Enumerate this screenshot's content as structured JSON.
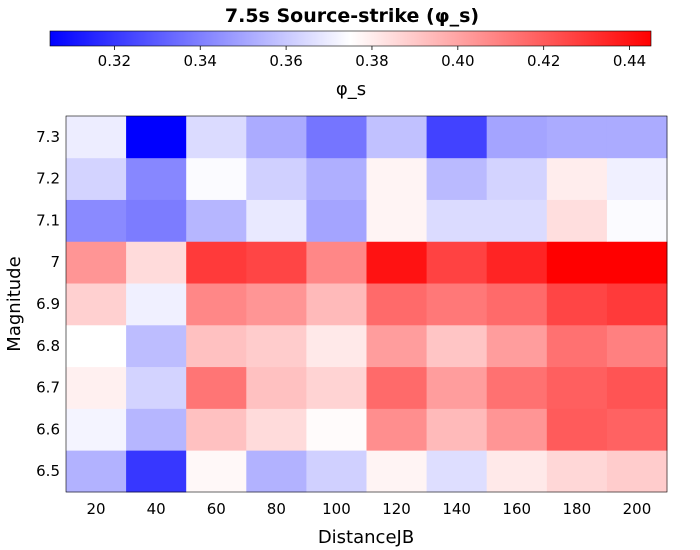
{
  "chart_data": {
    "type": "heatmap",
    "title": "7.5s Source-strike (φ_s)",
    "xlabel": "DistanceJB",
    "ylabel": "Magnitude",
    "x_categories": [
      "20",
      "40",
      "60",
      "80",
      "100",
      "120",
      "140",
      "160",
      "180",
      "200"
    ],
    "y_categories": [
      "6.5",
      "6.6",
      "6.7",
      "6.8",
      "6.9",
      "7",
      "7.1",
      "7.2",
      "7.3"
    ],
    "values": [
      [
        0.354,
        0.32,
        0.377,
        0.354,
        0.362,
        0.378,
        0.366,
        0.381,
        0.386,
        0.389
      ],
      [
        0.372,
        0.355,
        0.392,
        0.385,
        0.376,
        0.406,
        0.394,
        0.404,
        0.42,
        0.418
      ],
      [
        0.379,
        0.363,
        0.413,
        0.392,
        0.387,
        0.416,
        0.402,
        0.414,
        0.419,
        0.422
      ],
      [
        0.375,
        0.357,
        0.392,
        0.389,
        0.381,
        0.402,
        0.391,
        0.402,
        0.414,
        0.41
      ],
      [
        0.388,
        0.371,
        0.408,
        0.404,
        0.394,
        0.416,
        0.412,
        0.416,
        0.426,
        0.429
      ],
      [
        0.404,
        0.385,
        0.429,
        0.426,
        0.408,
        0.44,
        0.427,
        0.435,
        0.445,
        0.445
      ],
      [
        0.343,
        0.339,
        0.355,
        0.369,
        0.35,
        0.378,
        0.365,
        0.365,
        0.384,
        0.374
      ],
      [
        0.363,
        0.342,
        0.374,
        0.362,
        0.353,
        0.378,
        0.356,
        0.363,
        0.38,
        0.371
      ],
      [
        0.37,
        0.305,
        0.365,
        0.352,
        0.337,
        0.358,
        0.323,
        0.35,
        0.352,
        0.352
      ]
    ],
    "colorbar": {
      "label": "φ_s",
      "colormap": "bwr",
      "range": [
        0.305,
        0.445
      ],
      "ticks": [
        0.32,
        0.34,
        0.36,
        0.38,
        0.4,
        0.42,
        0.44
      ],
      "tick_labels": [
        "0.32",
        "0.34",
        "0.36",
        "0.38",
        "0.40",
        "0.42",
        "0.44"
      ],
      "placement": "top"
    },
    "grid": false,
    "colors": {
      "low": "#0000ff",
      "mid": "#ffffff",
      "high": "#ff0000"
    }
  }
}
